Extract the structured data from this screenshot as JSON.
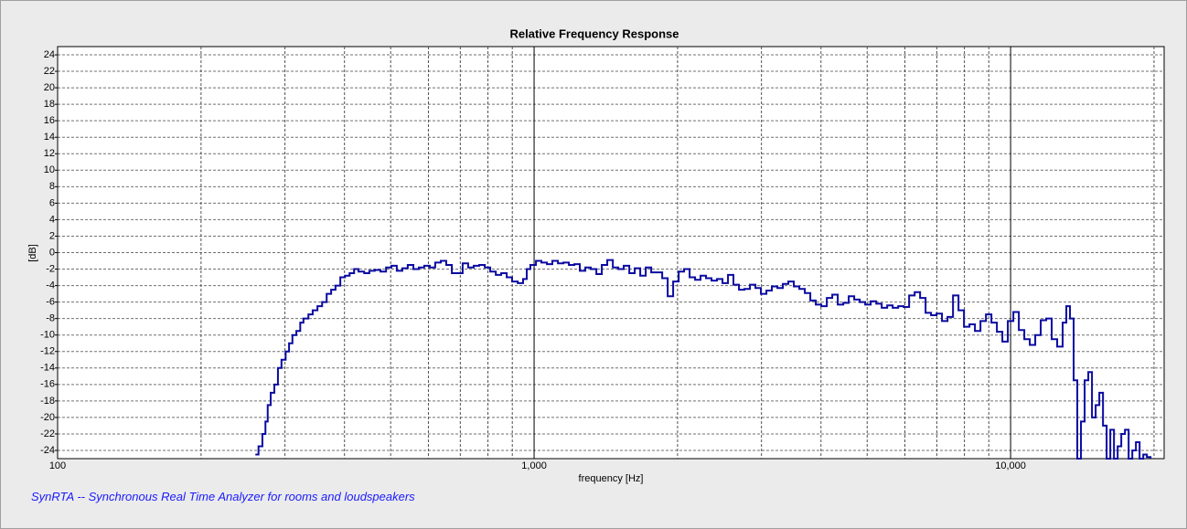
{
  "chart_data": {
    "type": "step-line",
    "title": "Relative Frequency Response",
    "x_label": "frequency [Hz]",
    "y_label": "[dB]",
    "log_x": true,
    "grid": true,
    "xlim": [
      100,
      21000
    ],
    "ylim": [
      -25,
      25
    ],
    "xticks": [
      {
        "value": 100,
        "label": "100"
      },
      {
        "value": 1000,
        "label": "1,000"
      },
      {
        "value": 10000,
        "label": "10,000"
      }
    ],
    "xminorticks": [
      200,
      300,
      400,
      500,
      600,
      700,
      800,
      900,
      2000,
      3000,
      4000,
      5000,
      6000,
      7000,
      8000,
      9000,
      20000
    ],
    "yticks": [
      -24,
      -22,
      -20,
      -18,
      -16,
      -14,
      -12,
      -10,
      -8,
      -6,
      -4,
      -2,
      0,
      2,
      4,
      6,
      8,
      10,
      12,
      14,
      16,
      18,
      20,
      22,
      24
    ],
    "series": [
      {
        "color": "#0a0aa0",
        "x": [
          260,
          264,
          269,
          273,
          276,
          280,
          285,
          290,
          295,
          301,
          306,
          311,
          317,
          323,
          328,
          336,
          343,
          351,
          359,
          367,
          375,
          383,
          392,
          401,
          410,
          419,
          428,
          440,
          451,
          463,
          476,
          489,
          502,
          515,
          529,
          543,
          558,
          573,
          588,
          604,
          620,
          637,
          654,
          672,
          690,
          708,
          727,
          747,
          767,
          788,
          809,
          831,
          853,
          876,
          899,
          924,
          948,
          965,
          982,
          1009,
          1036,
          1064,
          1092,
          1122,
          1152,
          1183,
          1215,
          1247,
          1281,
          1315,
          1351,
          1387,
          1424,
          1463,
          1502,
          1542,
          1584,
          1626,
          1670,
          1715,
          1761,
          1808,
          1857,
          1907,
          1958,
          2011,
          2064,
          2120,
          2177,
          2235,
          2295,
          2357,
          2420,
          2485,
          2552,
          2620,
          2691,
          2763,
          2838,
          2914,
          2992,
          3073,
          3155,
          3240,
          3327,
          3416,
          3508,
          3602,
          3700,
          3799,
          3901,
          4006,
          4114,
          4224,
          4338,
          4455,
          4574,
          4697,
          4824,
          4953,
          5086,
          5224,
          5364,
          5508,
          5656,
          5808,
          5964,
          6124,
          6290,
          6457,
          6631,
          6808,
          6991,
          7178,
          7373,
          7571,
          7774,
          7983,
          8197,
          8417,
          8645,
          8877,
          9115,
          9359,
          9610,
          9867,
          10134,
          10406,
          10685,
          10971,
          11265,
          11567,
          11879,
          12197,
          12524,
          12860,
          13090,
          13324,
          13561,
          13803,
          14050,
          14302,
          14557,
          14818,
          15083,
          15353,
          15629,
          15905,
          16190,
          16480,
          16775,
          17072,
          17378,
          17689,
          18006,
          18323,
          18651,
          18985,
          19320,
          19667
        ],
        "values": [
          -24.5,
          -23.5,
          -22,
          -20.5,
          -18.5,
          -17,
          -16,
          -14,
          -13,
          -12,
          -11,
          -10,
          -9.5,
          -8.5,
          -8,
          -7.5,
          -7,
          -6.5,
          -6,
          -5,
          -4.5,
          -4,
          -3,
          -2.8,
          -2.5,
          -2,
          -2.3,
          -2.5,
          -2.2,
          -2.1,
          -2.3,
          -1.8,
          -1.6,
          -2.2,
          -1.9,
          -1.5,
          -2,
          -1.8,
          -1.6,
          -1.8,
          -1.2,
          -1,
          -1.5,
          -2.5,
          -2.5,
          -1.3,
          -1.8,
          -1.6,
          -1.5,
          -1.8,
          -2.3,
          -2.7,
          -2.5,
          -3,
          -3.5,
          -3.7,
          -3.2,
          -2,
          -1.5,
          -1,
          -1.2,
          -1.4,
          -1,
          -1.3,
          -1.2,
          -1.5,
          -1.4,
          -2.2,
          -1.8,
          -2,
          -2.6,
          -1.5,
          -0.9,
          -1.8,
          -2,
          -1.6,
          -2.5,
          -1.9,
          -2.8,
          -1.8,
          -2.4,
          -2.4,
          -3.1,
          -5.3,
          -3.5,
          -2.3,
          -2,
          -3,
          -3.3,
          -2.8,
          -3.1,
          -3.4,
          -3.2,
          -3.7,
          -2.7,
          -3.9,
          -4.5,
          -4.4,
          -3.9,
          -4.3,
          -5,
          -4.6,
          -4.1,
          -4.3,
          -3.8,
          -3.5,
          -4.1,
          -4.4,
          -4.9,
          -5.8,
          -6.3,
          -6.5,
          -5.5,
          -5.1,
          -6.3,
          -6.1,
          -5.3,
          -5.7,
          -6,
          -6.3,
          -5.9,
          -6.2,
          -6.7,
          -6.4,
          -6.7,
          -6.5,
          -6.6,
          -5.2,
          -4.8,
          -5.5,
          -7.3,
          -7.6,
          -7.4,
          -8.3,
          -7.8,
          -5.2,
          -7,
          -9,
          -8.7,
          -9.5,
          -8.3,
          -7.5,
          -8.5,
          -9.6,
          -10.8,
          -8.3,
          -7.2,
          -9.4,
          -10.5,
          -11.2,
          -10,
          -8.2,
          -8,
          -10.5,
          -11.4,
          -8.5,
          -6.5,
          -8,
          -15.5,
          -25,
          -20.5,
          -15.5,
          -14.5,
          -20,
          -18.5,
          -17,
          -21,
          -25,
          -21.5,
          -25,
          -23.5,
          -22,
          -21.5,
          -25,
          -24,
          -23,
          -25,
          -24.5,
          -24.8,
          -25
        ]
      }
    ]
  },
  "footer": "SynRTA -- Synchronous Real Time Analyzer for rooms and loudspeakers"
}
